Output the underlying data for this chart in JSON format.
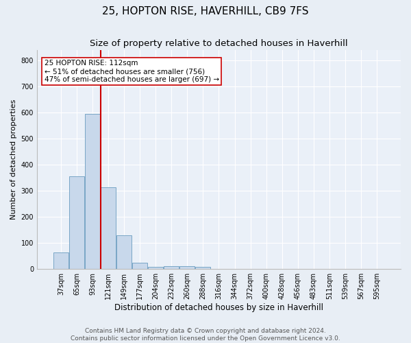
{
  "title1": "25, HOPTON RISE, HAVERHILL, CB9 7FS",
  "title2": "Size of property relative to detached houses in Haverhill",
  "xlabel": "Distribution of detached houses by size in Haverhill",
  "ylabel": "Number of detached properties",
  "categories": [
    "37sqm",
    "65sqm",
    "93sqm",
    "121sqm",
    "149sqm",
    "177sqm",
    "204sqm",
    "232sqm",
    "260sqm",
    "288sqm",
    "316sqm",
    "344sqm",
    "372sqm",
    "400sqm",
    "428sqm",
    "456sqm",
    "483sqm",
    "511sqm",
    "539sqm",
    "567sqm",
    "595sqm"
  ],
  "values": [
    65,
    355,
    595,
    315,
    130,
    25,
    8,
    10,
    10,
    8,
    0,
    0,
    0,
    0,
    0,
    0,
    0,
    0,
    0,
    0,
    0
  ],
  "bar_color": "#c8d8eb",
  "bar_edge_color": "#6a9cbf",
  "vertical_line_x": 2.5,
  "vertical_line_color": "#cc0000",
  "annotation_text": "25 HOPTON RISE: 112sqm\n← 51% of detached houses are smaller (756)\n47% of semi-detached houses are larger (697) →",
  "annotation_box_color": "#ffffff",
  "annotation_box_edge_color": "#cc0000",
  "ylim": [
    0,
    840
  ],
  "yticks": [
    0,
    100,
    200,
    300,
    400,
    500,
    600,
    700,
    800
  ],
  "footer1": "Contains HM Land Registry data © Crown copyright and database right 2024.",
  "footer2": "Contains public sector information licensed under the Open Government Licence v3.0.",
  "background_color": "#e8eef5",
  "plot_bg_color": "#eaf0f8",
  "grid_color": "#ffffff",
  "title1_fontsize": 11,
  "title2_fontsize": 9.5,
  "xlabel_fontsize": 8.5,
  "ylabel_fontsize": 8,
  "tick_fontsize": 7,
  "annotation_fontsize": 7.5,
  "footer_fontsize": 6.5
}
